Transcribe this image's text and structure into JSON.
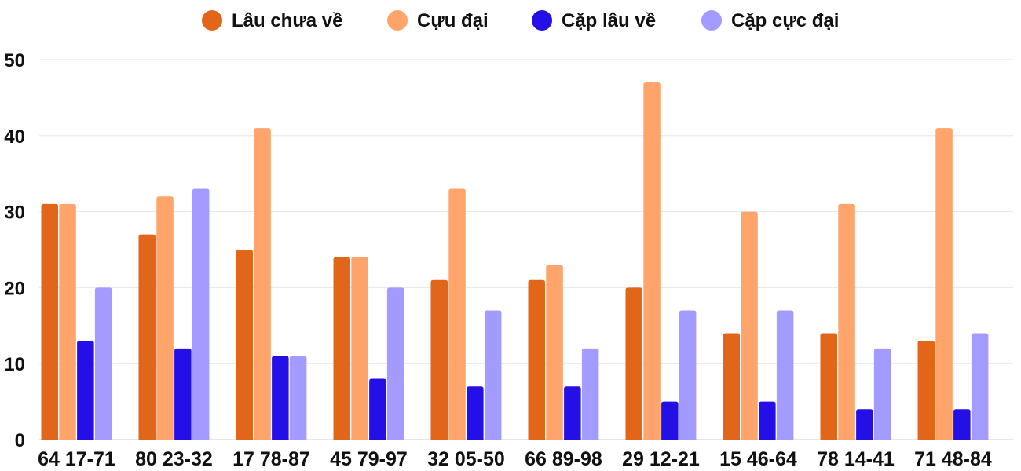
{
  "chart_data": {
    "type": "bar",
    "title": "",
    "xlabel": "",
    "ylabel": "",
    "ylim": [
      0,
      50
    ],
    "yticks": [
      0,
      10,
      20,
      30,
      40,
      50
    ],
    "grid": true,
    "legend_position": "top",
    "categories": [
      "64 17-71",
      "80 23-32",
      "17 78-87",
      "45 79-97",
      "32 05-50",
      "66 89-98",
      "29 12-21",
      "15 46-64",
      "78 14-41",
      "71 48-84"
    ],
    "series": [
      {
        "name": "Lâu chưa về",
        "color": "#E2661A",
        "values": [
          31,
          27,
          25,
          24,
          21,
          21,
          20,
          14,
          14,
          13
        ]
      },
      {
        "name": "Cựu đại",
        "color": "#FFA46B",
        "values": [
          31,
          32,
          41,
          24,
          33,
          23,
          47,
          30,
          31,
          41
        ]
      },
      {
        "name": "Cặp lâu về",
        "color": "#2410E6",
        "values": [
          13,
          12,
          11,
          8,
          7,
          7,
          5,
          5,
          4,
          4
        ]
      },
      {
        "name": "Cặp cực đại",
        "color": "#A39BFF",
        "values": [
          20,
          33,
          11,
          20,
          17,
          12,
          17,
          17,
          12,
          14
        ]
      }
    ],
    "grid_color": "#e6e6e6",
    "axis_color": "#cccccc"
  }
}
